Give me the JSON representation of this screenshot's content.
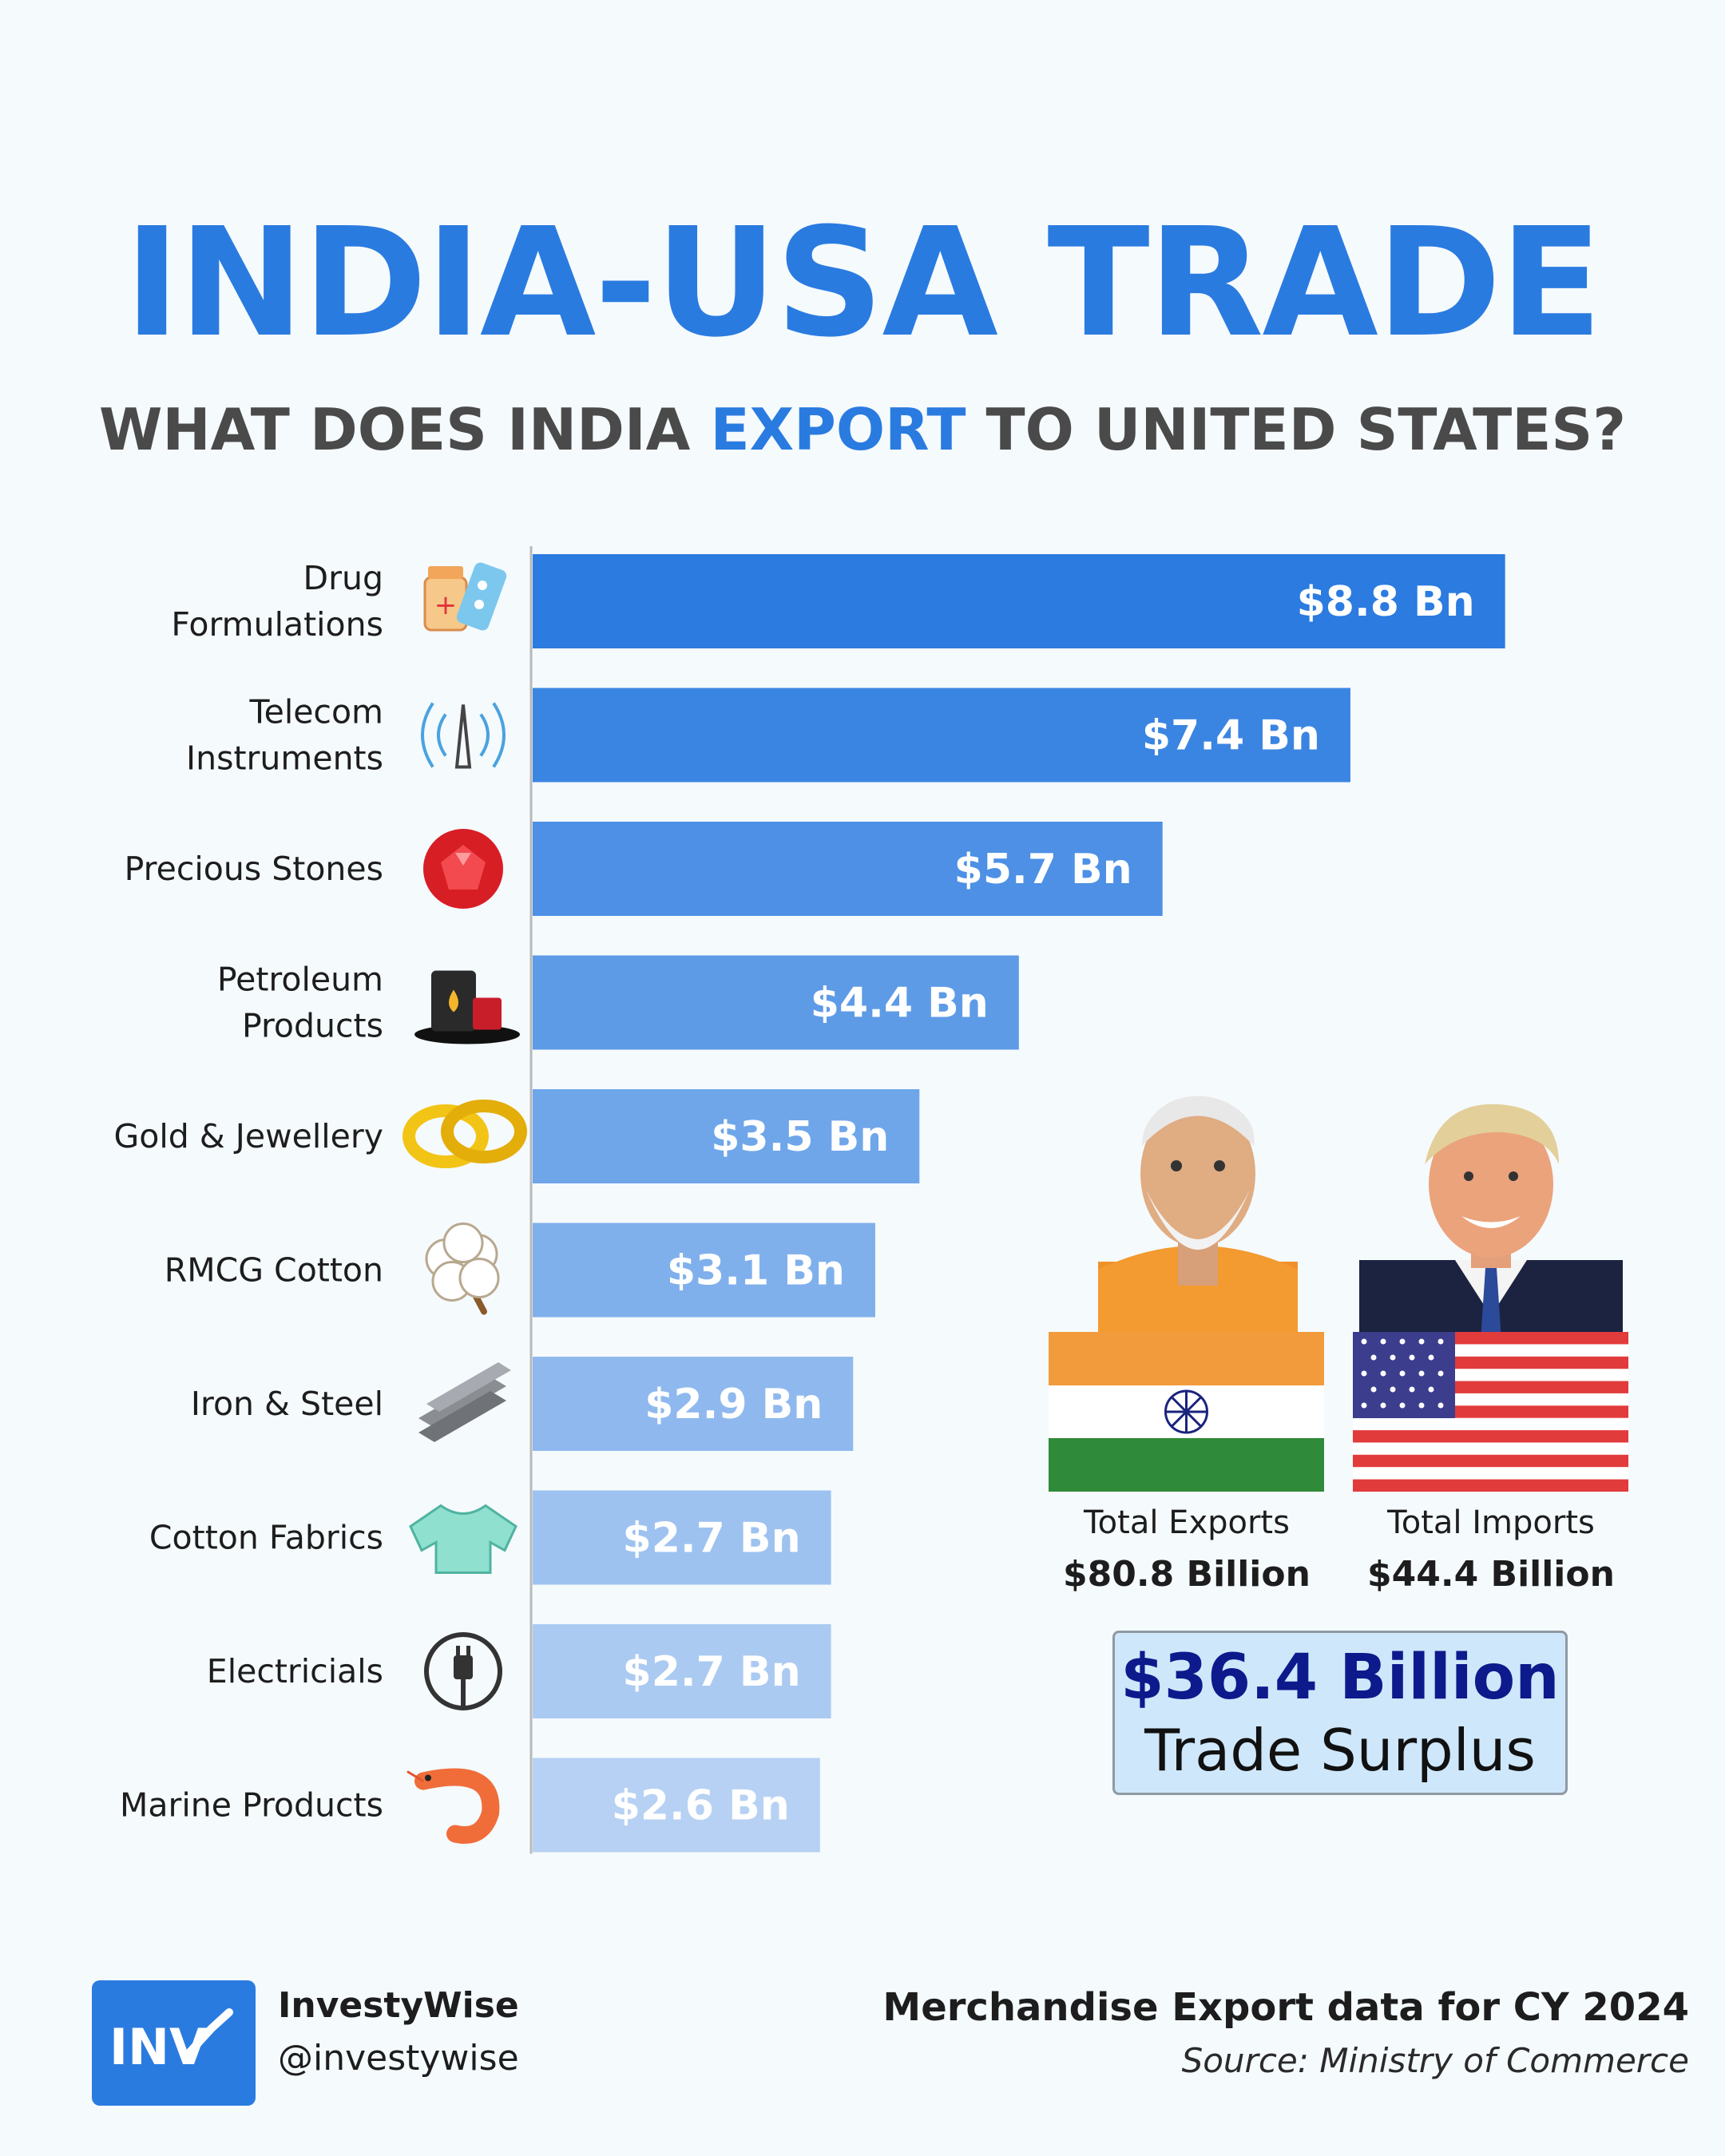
{
  "title": "INDIA-USA TRADE",
  "subtitle": {
    "before": "WHAT DOES INDIA ",
    "highlight": "EXPORT",
    "after": " TO UNITED STATES?"
  },
  "chart_data": {
    "type": "bar",
    "orientation": "horizontal",
    "categories": [
      [
        "Drug",
        "Formulations"
      ],
      [
        "Telecom",
        "Instruments"
      ],
      [
        "Precious Stones"
      ],
      [
        "Petroleum",
        "Products"
      ],
      [
        "Gold & Jewellery"
      ],
      [
        "RMCG Cotton"
      ],
      [
        "Iron & Steel"
      ],
      [
        "Cotton Fabrics"
      ],
      [
        "Electricials"
      ],
      [
        "Marine Products"
      ]
    ],
    "values": [
      8.8,
      7.4,
      5.7,
      4.4,
      3.5,
      3.1,
      2.9,
      2.7,
      2.7,
      2.6
    ],
    "value_labels": [
      "$8.8 Bn",
      "$7.4 Bn",
      "$5.7 Bn",
      "$4.4 Bn",
      "$3.5 Bn",
      "$3.1 Bn",
      "$2.9 Bn",
      "$2.7 Bn",
      "$2.7 Bn",
      "$2.6 Bn"
    ],
    "icons": [
      "medicine-icon",
      "telecom-tower-icon",
      "gemstone-icon",
      "oil-barrel-icon",
      "gold-rings-icon",
      "cotton-boll-icon",
      "steel-beams-icon",
      "shirt-icon",
      "power-plug-icon",
      "shrimp-icon"
    ],
    "bar_colors": [
      "#2b7be0",
      "#3b85e2",
      "#4d90e5",
      "#5e9be7",
      "#6fa6ea",
      "#80b0ec",
      "#8fb9ee",
      "#9dc2f0",
      "#abcaf1",
      "#b6d1f3"
    ],
    "xlim": [
      0,
      9.2
    ],
    "grid": false,
    "legend": "none"
  },
  "panel": {
    "india": {
      "portrait_icon": "leader-portrait-india",
      "flag_icon": "india-flag-icon",
      "heading": "Total Exports",
      "value": "$80.8 Billion",
      "flag_colors": [
        "#f29b3c",
        "#ffffff",
        "#2f8a3a"
      ],
      "chakra_color": "#1a237e"
    },
    "usa": {
      "portrait_icon": "leader-portrait-usa",
      "flag_icon": "usa-flag-icon",
      "heading": "Total Imports",
      "value": "$44.4 Billion",
      "flag_colors": [
        "#e23b3b",
        "#ffffff",
        "#3c3d8c"
      ]
    },
    "surplus": {
      "amount": "$36.4 Billion",
      "label": "Trade Surplus"
    }
  },
  "footer": {
    "logo_text": "INV",
    "brand": "InvestyWise",
    "handle": "@investywise",
    "note": "Merchandise Export data for CY 2024",
    "source": "Source: Ministry of Commerce"
  },
  "colors": {
    "accent": "#2a7be0",
    "subtitle_gray": "#4a4a4a",
    "background": "#f5fafd",
    "surplus_box": "#cfe7fb",
    "surplus_text": "#0d1a8c"
  }
}
